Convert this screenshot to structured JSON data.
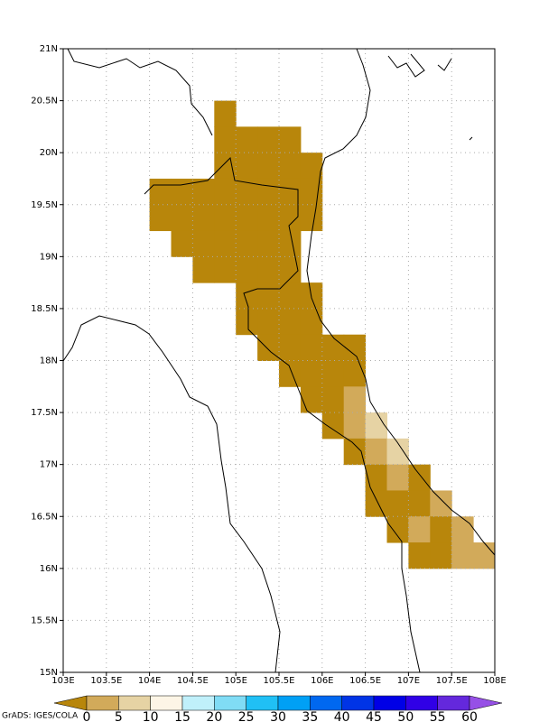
{
  "map": {
    "xlim": [
      103,
      108
    ],
    "ylim": [
      15,
      21
    ],
    "xticks": [
      {
        "value": 103,
        "label": "103E"
      },
      {
        "value": 103.5,
        "label": "103.5E"
      },
      {
        "value": 104,
        "label": "104E"
      },
      {
        "value": 104.5,
        "label": "104.5E"
      },
      {
        "value": 105,
        "label": "105E"
      },
      {
        "value": 105.5,
        "label": "105.5E"
      },
      {
        "value": 106,
        "label": "106E"
      },
      {
        "value": 106.5,
        "label": "106.5E"
      },
      {
        "value": 107,
        "label": "107E"
      },
      {
        "value": 107.5,
        "label": "107.5E"
      },
      {
        "value": 108,
        "label": "108E"
      }
    ],
    "yticks": [
      {
        "value": 15,
        "label": "15N"
      },
      {
        "value": 15.5,
        "label": "15.5N"
      },
      {
        "value": 16,
        "label": "16N"
      },
      {
        "value": 16.5,
        "label": "16.5N"
      },
      {
        "value": 17,
        "label": "17N"
      },
      {
        "value": 17.5,
        "label": "17.5N"
      },
      {
        "value": 18,
        "label": "18N"
      },
      {
        "value": 18.5,
        "label": "18.5N"
      },
      {
        "value": 19,
        "label": "19N"
      },
      {
        "value": 19.5,
        "label": "19.5N"
      },
      {
        "value": 20,
        "label": "20N"
      },
      {
        "value": 20.5,
        "label": "20.5N"
      },
      {
        "value": 21,
        "label": "21N"
      }
    ],
    "grid": true,
    "cell_size": 0.25,
    "cells": [
      [
        104.75,
        20.25,
        -2
      ],
      [
        104.75,
        20,
        -2
      ],
      [
        105,
        20,
        -2
      ],
      [
        105.25,
        20,
        -2
      ],
      [
        105.5,
        20,
        -2
      ],
      [
        104.75,
        19.75,
        -2
      ],
      [
        105,
        19.75,
        -2
      ],
      [
        105.25,
        19.75,
        -2
      ],
      [
        105.5,
        19.75,
        -2
      ],
      [
        105.75,
        19.75,
        -2
      ],
      [
        104,
        19.5,
        -2
      ],
      [
        104.25,
        19.5,
        -2
      ],
      [
        104.5,
        19.5,
        -2
      ],
      [
        104.75,
        19.5,
        -2
      ],
      [
        105,
        19.5,
        -2
      ],
      [
        105.25,
        19.5,
        -2
      ],
      [
        105.5,
        19.5,
        -2
      ],
      [
        105.75,
        19.5,
        -2
      ],
      [
        104,
        19.25,
        -2
      ],
      [
        104.25,
        19.25,
        -2
      ],
      [
        104.5,
        19.25,
        -2
      ],
      [
        104.75,
        19.25,
        -2
      ],
      [
        105,
        19.25,
        -2
      ],
      [
        105.25,
        19.25,
        -2
      ],
      [
        105.5,
        19.25,
        -2
      ],
      [
        105.75,
        19.25,
        -2
      ],
      [
        104.25,
        19,
        -2
      ],
      [
        104.5,
        19,
        -2
      ],
      [
        104.75,
        19,
        -2
      ],
      [
        105,
        19,
        -2
      ],
      [
        105.25,
        19,
        -2
      ],
      [
        105.5,
        19,
        -2
      ],
      [
        104.5,
        18.75,
        -2
      ],
      [
        104.75,
        18.75,
        -2
      ],
      [
        105,
        18.75,
        -2
      ],
      [
        105.25,
        18.75,
        -2
      ],
      [
        105.5,
        18.75,
        -2
      ],
      [
        105,
        18.5,
        -2
      ],
      [
        105.25,
        18.5,
        -2
      ],
      [
        105.5,
        18.5,
        -2
      ],
      [
        105.75,
        18.5,
        -2
      ],
      [
        105,
        18.25,
        -2
      ],
      [
        105.25,
        18.25,
        -2
      ],
      [
        105.5,
        18.25,
        -2
      ],
      [
        105.75,
        18.25,
        -2
      ],
      [
        105.25,
        18,
        -2
      ],
      [
        105.5,
        18,
        -2
      ],
      [
        105.75,
        18,
        -2
      ],
      [
        106,
        18,
        -2
      ],
      [
        106.25,
        18,
        -2
      ],
      [
        105.5,
        17.75,
        -2
      ],
      [
        105.75,
        17.75,
        -2
      ],
      [
        106,
        17.75,
        -2
      ],
      [
        106.25,
        17.75,
        -2
      ],
      [
        105.75,
        17.5,
        -2
      ],
      [
        106,
        17.5,
        -2
      ],
      [
        106.25,
        17.5,
        2
      ],
      [
        106,
        17.25,
        -2
      ],
      [
        106.25,
        17.25,
        2
      ],
      [
        106.5,
        17.25,
        7
      ],
      [
        106.25,
        17,
        -2
      ],
      [
        106.5,
        17,
        2
      ],
      [
        106.75,
        17,
        7
      ],
      [
        106.5,
        16.75,
        -2
      ],
      [
        106.75,
        16.75,
        2
      ],
      [
        107,
        16.75,
        -2
      ],
      [
        106.5,
        16.5,
        -2
      ],
      [
        106.75,
        16.5,
        -2
      ],
      [
        107,
        16.5,
        -2
      ],
      [
        107.25,
        16.5,
        2
      ],
      [
        106.75,
        16.25,
        -2
      ],
      [
        107,
        16.25,
        2
      ],
      [
        107.25,
        16.25,
        -2
      ],
      [
        107.5,
        16.25,
        2
      ],
      [
        107,
        16,
        -2
      ],
      [
        107.25,
        16,
        -2
      ],
      [
        107.5,
        16,
        2
      ],
      [
        107.75,
        16,
        2
      ]
    ],
    "legend": {
      "levels": [
        0,
        5,
        10,
        15,
        20,
        25,
        30,
        35,
        40,
        45,
        50,
        55,
        60
      ],
      "colors": [
        "#b8860b",
        "#d2aa5a",
        "#e6d3a4",
        "#fdf5e6",
        "#c0f0fa",
        "#80dcf5",
        "#20c0f5",
        "#00a0f5",
        "#0068f0",
        "#0034e6",
        "#0000e6",
        "#3000e6",
        "#6428dc",
        "#9650e6"
      ]
    },
    "credit": "GrADS: IGES/COLA"
  }
}
